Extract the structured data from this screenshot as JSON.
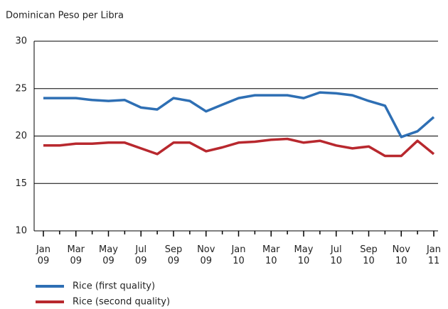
{
  "chart_data": {
    "type": "line",
    "title": "Dominican Peso per Libra",
    "categories": [
      "Jan\n09",
      null,
      "Mar\n09",
      null,
      "May\n09",
      null,
      "Jul\n09",
      null,
      "Sep\n09",
      null,
      "Nov\n09",
      null,
      "Jan\n10",
      null,
      "Mar\n10",
      null,
      "May\n10",
      null,
      "Jul\n10",
      null,
      "Sep\n10",
      null,
      "Nov\n10",
      null,
      "Jan\n11"
    ],
    "series": [
      {
        "name": "Rice (first quality)",
        "color": "#2e6fb4",
        "values": [
          24.0,
          24.0,
          24.0,
          23.8,
          23.7,
          23.8,
          23.0,
          22.8,
          24.0,
          23.7,
          22.6,
          23.3,
          24.0,
          24.3,
          24.3,
          24.3,
          24.0,
          24.6,
          24.5,
          24.3,
          23.7,
          23.2,
          19.9,
          20.5,
          22.0
        ]
      },
      {
        "name": "Rice (second quality)",
        "color": "#b8282e",
        "values": [
          19.0,
          19.0,
          19.2,
          19.2,
          19.3,
          19.3,
          18.7,
          18.1,
          19.3,
          19.3,
          18.4,
          18.8,
          19.3,
          19.4,
          19.6,
          19.7,
          19.3,
          19.5,
          19.0,
          18.7,
          18.9,
          17.9,
          17.9,
          19.5,
          18.1
        ]
      }
    ],
    "ylim": [
      10,
      30
    ],
    "yticks": [
      10,
      15,
      20,
      25,
      30
    ],
    "grid": true
  }
}
